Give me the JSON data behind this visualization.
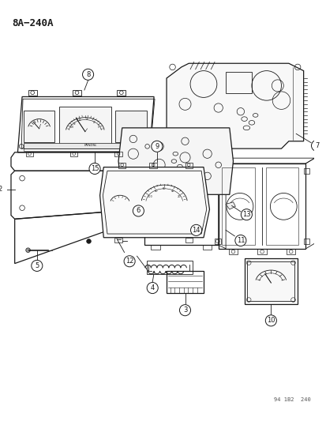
{
  "title": "8A−240A",
  "background_color": "#ffffff",
  "line_color": "#1a1a1a",
  "watermark": "94 1B2  240",
  "figsize": [
    4.14,
    5.33
  ],
  "dpi": 100
}
